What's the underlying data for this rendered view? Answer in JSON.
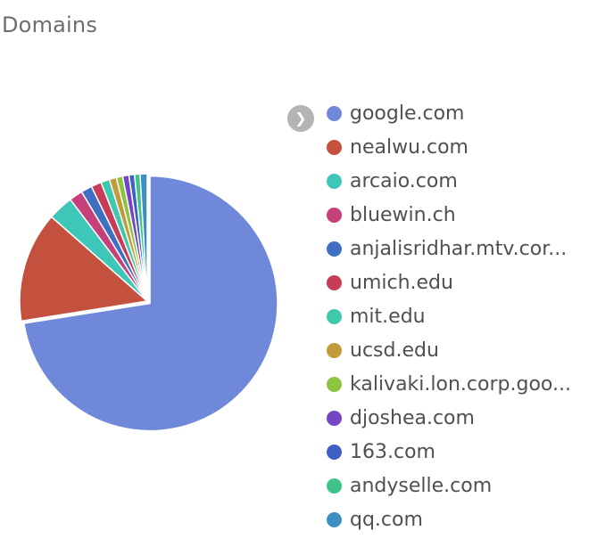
{
  "title": "Domains",
  "legend": {
    "toggle_icon": "chevron-right-icon",
    "toggle_glyph": "❯"
  },
  "chart_data": {
    "type": "pie",
    "title": "Domains",
    "legend_position": "right",
    "slices": [
      {
        "name": "google.com",
        "value": 72.5,
        "color": "#6f88d9"
      },
      {
        "name": "nealwu.com",
        "value": 14.0,
        "color": "#c4513e"
      },
      {
        "name": "arcaio.com",
        "value": 3.2,
        "color": "#3ec7b8"
      },
      {
        "name": "bluewin.ch",
        "value": 1.7,
        "color": "#c4417a"
      },
      {
        "name": "anjalisridhar.mtv.cor...",
        "value": 1.4,
        "color": "#3f6fc2"
      },
      {
        "name": "umich.edu",
        "value": 1.3,
        "color": "#c73d57"
      },
      {
        "name": "mit.edu",
        "value": 1.1,
        "color": "#3ec9ad"
      },
      {
        "name": "ucsd.edu",
        "value": 0.9,
        "color": "#c19a3a"
      },
      {
        "name": "kalivaki.lon.corp.goo...",
        "value": 0.8,
        "color": "#8cc43f"
      },
      {
        "name": "djoshea.com",
        "value": 0.8,
        "color": "#7545c4"
      },
      {
        "name": "163.com",
        "value": 0.7,
        "color": "#3e5fc4"
      },
      {
        "name": "andyselle.com",
        "value": 0.7,
        "color": "#3ec48a"
      },
      {
        "name": "qq.com",
        "value": 0.9,
        "color": "#3e8fc0"
      }
    ]
  }
}
